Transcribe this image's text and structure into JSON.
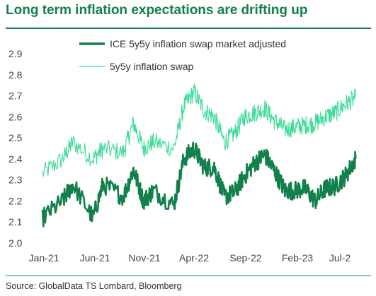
{
  "title": "Long term inflation expectations are drifting up",
  "source": "Source: GlobalData TS Lombard, Bloomberg",
  "colors": {
    "accent": "#11804a",
    "swap": "#3ddc97",
    "adjusted": "#11804a"
  },
  "chart_data": {
    "type": "line",
    "title": "Long term inflation expectations are drifting up",
    "xlabel": "",
    "ylabel": "",
    "x_ticks": [
      "Jan-21",
      "Jun-21",
      "Nov-21",
      "Apr-22",
      "Sep-22",
      "Feb-23",
      "Jul-2"
    ],
    "y_ticks": [
      "2.9",
      "2.8",
      "2.7",
      "2.6",
      "2.5",
      "2.4",
      "2.3",
      "2.2",
      "2.1",
      "2.0"
    ],
    "ylim": [
      2.0,
      2.9
    ],
    "grid": false,
    "legend_position": "top",
    "series": [
      {
        "name": "ICE 5y5y inflation swap market adjusted",
        "style": "thick",
        "color": "#11804a",
        "x": [
          "Jan-21",
          "Mar-21",
          "Apr-21",
          "Jun-21",
          "Jul-21",
          "Sep-21",
          "Oct-21",
          "Nov-21",
          "Dec-21",
          "Feb-22",
          "Mar-22",
          "Apr-22",
          "May-22",
          "Jun-22",
          "Jul-22",
          "Aug-22",
          "Sep-22",
          "Oct-22",
          "Nov-22",
          "Dec-22",
          "Jan-23",
          "Feb-23",
          "Mar-23",
          "Apr-23",
          "May-23",
          "Jun-23",
          "Jul-23",
          "Aug-23"
        ],
        "values": [
          2.12,
          2.2,
          2.28,
          2.12,
          2.28,
          2.22,
          2.35,
          2.2,
          2.25,
          2.18,
          2.4,
          2.45,
          2.36,
          2.36,
          2.22,
          2.24,
          2.32,
          2.38,
          2.42,
          2.34,
          2.25,
          2.25,
          2.26,
          2.2,
          2.26,
          2.27,
          2.32,
          2.4
        ]
      },
      {
        "name": "5y5y inflation swap",
        "style": "thin",
        "color": "#3ddc97",
        "x": [
          "Jan-21",
          "Mar-21",
          "Apr-21",
          "Jun-21",
          "Jul-21",
          "Sep-21",
          "Oct-21",
          "Nov-21",
          "Dec-21",
          "Feb-22",
          "Mar-22",
          "Apr-22",
          "May-22",
          "Jun-22",
          "Jul-22",
          "Aug-22",
          "Sep-22",
          "Oct-22",
          "Nov-22",
          "Dec-22",
          "Jan-23",
          "Feb-23",
          "Mar-23",
          "Apr-23",
          "May-23",
          "Jun-23",
          "Jul-23",
          "Aug-23"
        ],
        "values": [
          2.33,
          2.4,
          2.48,
          2.4,
          2.45,
          2.43,
          2.57,
          2.45,
          2.48,
          2.45,
          2.65,
          2.72,
          2.63,
          2.6,
          2.48,
          2.52,
          2.6,
          2.62,
          2.64,
          2.58,
          2.54,
          2.55,
          2.56,
          2.57,
          2.6,
          2.62,
          2.66,
          2.69
        ]
      }
    ]
  }
}
